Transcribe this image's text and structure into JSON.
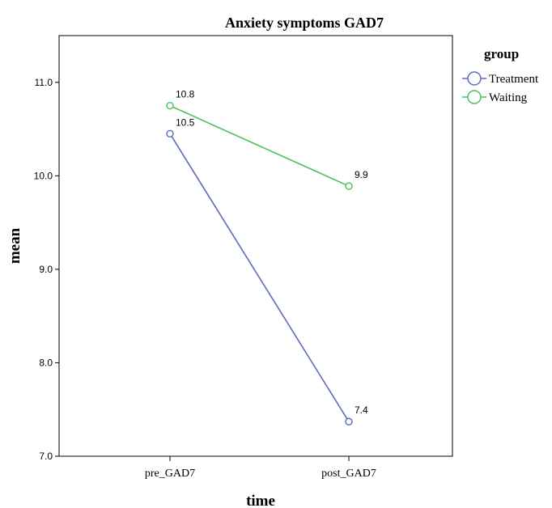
{
  "chart_data": {
    "type": "line",
    "title": "Anxiety symptoms GAD7",
    "xlabel": "time",
    "ylabel": "mean",
    "categories": [
      "pre_GAD7",
      "post_GAD7"
    ],
    "ylim": [
      7.0,
      11.5
    ],
    "yticks": [
      7.0,
      8.0,
      9.0,
      10.0,
      11.0
    ],
    "ytick_labels": [
      "7.0",
      "8.0",
      "9.0",
      "10.0",
      "11.0"
    ],
    "grid": false,
    "legend": {
      "title": "group",
      "position": "right"
    },
    "series": [
      {
        "name": "Treatment",
        "color": "#5b6bbf",
        "values": [
          10.45,
          7.37
        ],
        "labels": [
          "10.5",
          "7.4"
        ]
      },
      {
        "name": "Waiting",
        "color": "#4cc15a",
        "values": [
          10.75,
          9.89
        ],
        "labels": [
          "10.8",
          "9.9"
        ]
      }
    ]
  }
}
